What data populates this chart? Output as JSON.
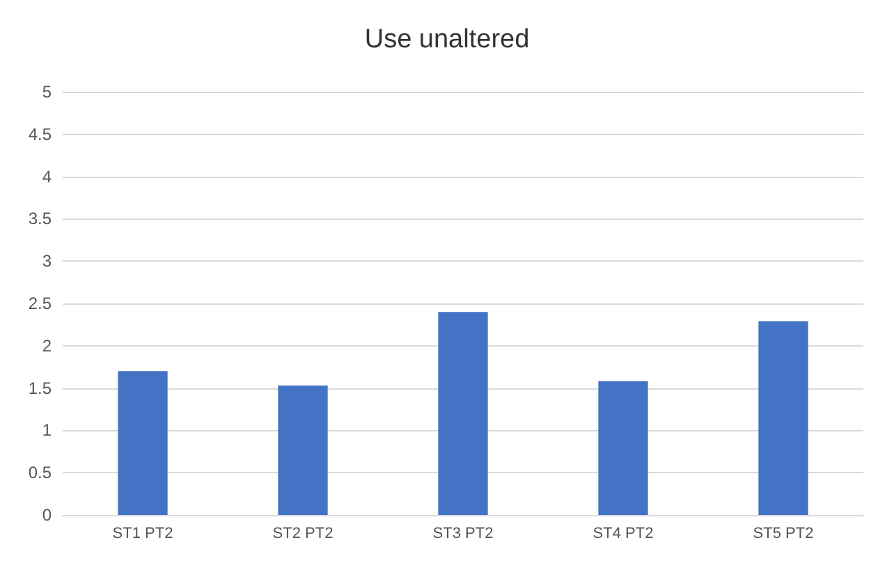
{
  "chart_data": {
    "type": "bar",
    "title": "Use unaltered",
    "categories": [
      "ST1 PT2",
      "ST2 PT2",
      "ST3 PT2",
      "ST4 PT2",
      "ST5 PT2"
    ],
    "values": [
      1.7,
      1.53,
      2.4,
      1.58,
      2.29
    ],
    "color": "#4472c4",
    "ylim": [
      0,
      5
    ],
    "yticks": [
      0,
      0.5,
      1,
      1.5,
      2,
      2.5,
      3,
      3.5,
      4,
      4.5,
      5
    ],
    "grid": "y"
  }
}
